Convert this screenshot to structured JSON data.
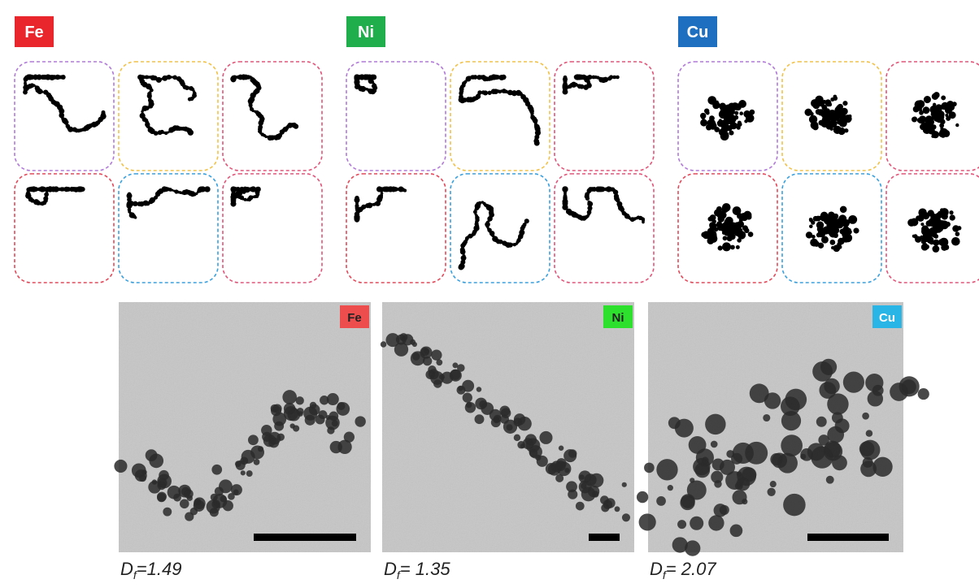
{
  "groups": [
    {
      "label": "Fe",
      "tem_label": "Fe",
      "df": {
        "symbol": "D",
        "sub": "f",
        "value": "=1.49"
      }
    },
    {
      "label": "Ni",
      "tem_label": "Ni",
      "df": {
        "symbol": "D",
        "sub": "f",
        "value": "= 1.35"
      }
    },
    {
      "label": "Cu",
      "tem_label": "Cu",
      "df": {
        "symbol": "D",
        "sub": "f",
        "value": "= 2.07"
      }
    }
  ]
}
